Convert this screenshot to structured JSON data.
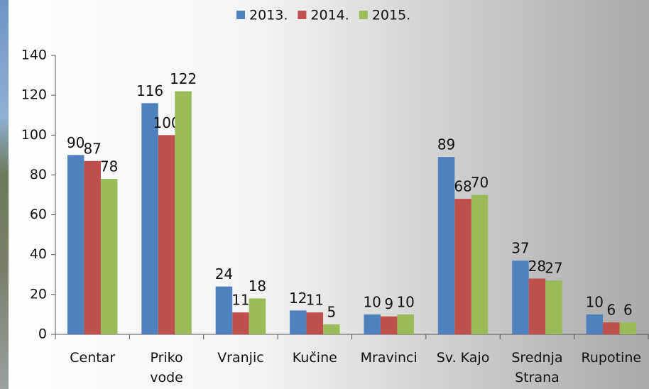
{
  "chart_data": {
    "type": "bar",
    "categories": [
      "Centar",
      "Priko vode",
      "Vranjic",
      "Kučine",
      "Mravinci",
      "Sv. Kajo",
      "Srednja Strana",
      "Rupotine"
    ],
    "series": [
      {
        "name": "2013.",
        "color": "#4f81bd",
        "values": [
          90,
          116,
          24,
          12,
          10,
          89,
          37,
          10
        ]
      },
      {
        "name": "2014.",
        "color": "#c0504d",
        "values": [
          87,
          100,
          11,
          11,
          9,
          68,
          28,
          6
        ]
      },
      {
        "name": "2015.",
        "color": "#9bbb59",
        "values": [
          78,
          122,
          18,
          5,
          10,
          70,
          27,
          6
        ]
      }
    ],
    "ylim": [
      0,
      140
    ],
    "yticks": [
      0,
      20,
      40,
      60,
      80,
      100,
      120,
      140
    ],
    "grid": false,
    "legend": "top"
  }
}
